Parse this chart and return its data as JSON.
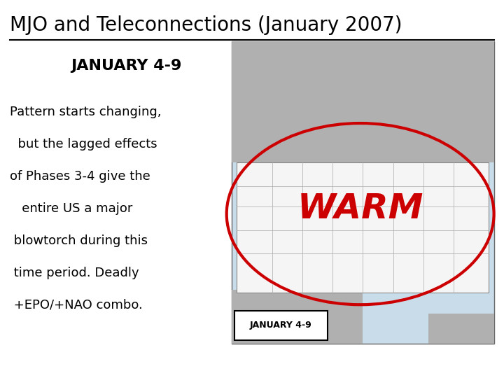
{
  "title": "MJO and Teleconnections (January 2007)",
  "subtitle": "JANUARY 4-9",
  "body_lines": [
    "Pattern starts changing,",
    "  but the lagged effects",
    "of Phases 3-4 give the",
    "   entire US a major",
    " blowtorch during this",
    " time period. Deadly",
    " +EPO/+NAO combo."
  ],
  "warm_text": "WARM",
  "map_label": "JANUARY 4-9",
  "bg_color": "#ffffff",
  "title_color": "#000000",
  "subtitle_color": "#000000",
  "body_color": "#000000",
  "warm_color": "#cc0000",
  "ellipse_color": "#cc0000",
  "map_ocean": "#c8dcea",
  "map_canada": "#b0b0b0",
  "map_mexico": "#b0b0b0",
  "us_color": "#f5f5f5",
  "us_border": "#888888"
}
